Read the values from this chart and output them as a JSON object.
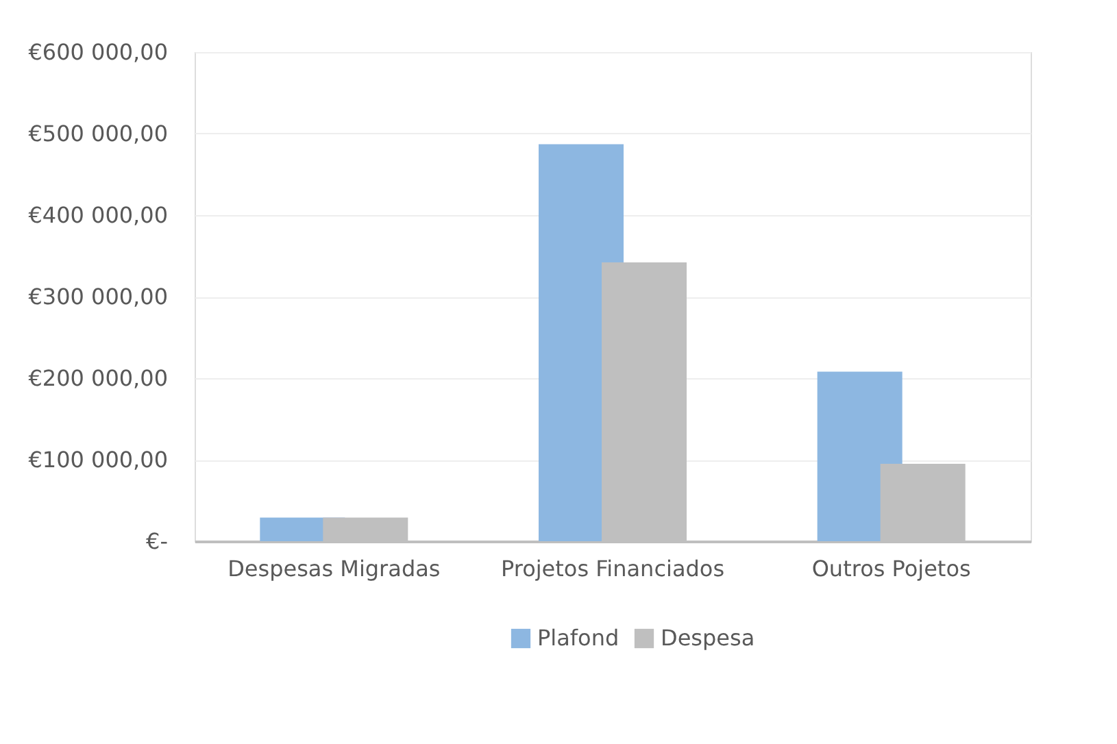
{
  "chart_data": {
    "type": "bar",
    "categories": [
      "Despesas Migradas",
      "Projetos Financiados",
      "Outros Pojetos"
    ],
    "series": [
      {
        "name": "Plafond",
        "color": "#8db7e1",
        "values": [
          29000,
          487000,
          208000
        ]
      },
      {
        "name": "Despesa",
        "color": "#bfbfbf",
        "values": [
          29000,
          342000,
          95000
        ]
      }
    ],
    "ylim": [
      0,
      600000
    ],
    "yticks": [
      {
        "value": 0,
        "label": "€-"
      },
      {
        "value": 100000,
        "label": "€100 000,00"
      },
      {
        "value": 200000,
        "label": "€200 000,00"
      },
      {
        "value": 300000,
        "label": "€300 000,00"
      },
      {
        "value": 400000,
        "label": "€400 000,00"
      },
      {
        "value": 500000,
        "label": "€500 000,00"
      },
      {
        "value": 600000,
        "label": "€600 000,00"
      }
    ],
    "grid": "y",
    "legend": "bottom"
  }
}
